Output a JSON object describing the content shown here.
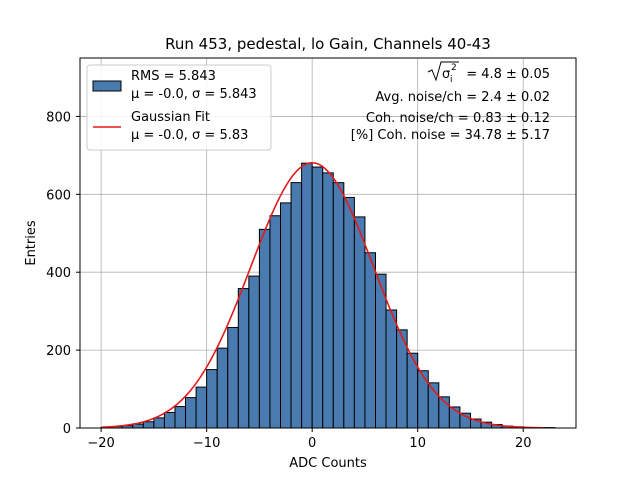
{
  "chart_data": {
    "type": "bar",
    "title": "Run 453, pedestal, lo Gain, Channels 40-43",
    "xlabel": "ADC Counts",
    "ylabel": "Entries",
    "xlim": [
      -22,
      25
    ],
    "ylim": [
      0,
      950
    ],
    "grid": true,
    "x_ticks": [
      -20,
      -10,
      0,
      10,
      20
    ],
    "x_tick_labels": [
      "−20",
      "−10",
      "0",
      "10",
      "20"
    ],
    "y_ticks": [
      0,
      200,
      400,
      600,
      800
    ],
    "y_tick_labels": [
      "0",
      "200",
      "400",
      "600",
      "800"
    ],
    "histogram": {
      "bin_start": -20,
      "bin_width": 1,
      "counts": [
        2,
        4,
        6,
        10,
        16,
        26,
        40,
        55,
        78,
        105,
        150,
        205,
        258,
        358,
        390,
        510,
        545,
        578,
        630,
        680,
        670,
        655,
        630,
        592,
        542,
        450,
        395,
        303,
        252,
        192,
        147,
        116,
        80,
        54,
        38,
        23,
        15,
        9,
        5,
        3,
        1,
        1,
        1
      ],
      "fill_color": "#4a7bb0",
      "edge_color": "#000000"
    },
    "gaussian_fit": {
      "mu": -0.0,
      "sigma": 5.83,
      "amplitude": 681,
      "x_range": [
        -20,
        22
      ],
      "color": "#e31a1c"
    },
    "legend": {
      "placement": "top-left",
      "entries": [
        {
          "line1": "RMS = 5.843",
          "line2": "μ = -0.0, σ = 5.843"
        },
        {
          "line1": "Gaussian Fit",
          "line2": "μ = -0.0, σ = 5.83"
        }
      ]
    },
    "annotations": {
      "placement": "top-right",
      "lines": [
        "= 4.8 ± 0.05",
        "Avg. noise/ch = 2.4 ± 0.02",
        "Coh. noise/ch = 0.83 ± 0.12",
        "[%] Coh. noise = 34.78 ± 5.17"
      ],
      "sqrt_symbol": "√",
      "sigma_symbol": "σ",
      "sigma_sub": "i",
      "sigma_sup": "2"
    }
  }
}
